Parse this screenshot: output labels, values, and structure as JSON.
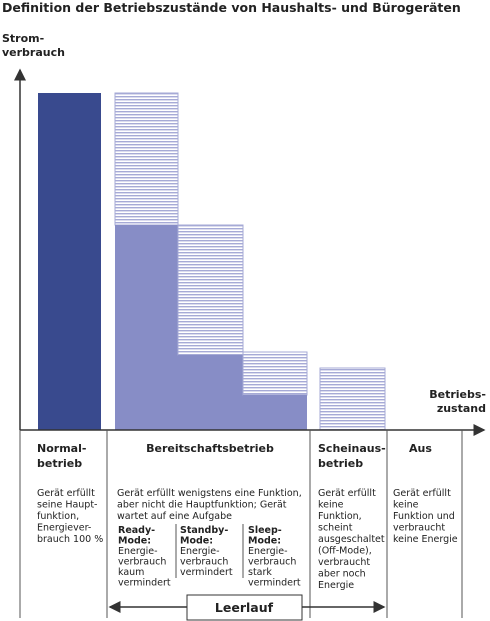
{
  "title": "Definition der Betriebszustände von Haushalts- und Bürogeräten",
  "y_axis_label": [
    "Strom-",
    "verbrauch"
  ],
  "x_axis_label": [
    "Betriebs-",
    "zustand"
  ],
  "columns": [
    {
      "heading": [
        "Normal-",
        "betrieb"
      ],
      "text": [
        "Gerät erfüllt",
        "seine Haupt-",
        "funktion,",
        "Energiever-",
        "brauch 100 %"
      ]
    },
    {
      "heading": [
        "Bereitschaftsbetrieb"
      ],
      "text": [
        "Gerät erfüllt wenigstens eine Funktion,",
        "aber nicht die Hauptfunktion; Gerät",
        "wartet auf eine Aufgabe"
      ],
      "modes": [
        {
          "name": [
            "Ready-",
            "Mode:"
          ],
          "text": [
            "Energie-",
            "verbrauch",
            "kaum",
            "vermindert"
          ]
        },
        {
          "name": [
            "Standby-",
            "Mode:"
          ],
          "text": [
            "Energie-",
            "verbrauch",
            "vermindert"
          ]
        },
        {
          "name": [
            "Sleep-",
            "Mode:"
          ],
          "text": [
            "Energie-",
            "verbrauch",
            "stark",
            "vermindert"
          ]
        }
      ]
    },
    {
      "heading": [
        "Scheinaus-",
        "betrieb"
      ],
      "text": [
        "Gerät erfüllt",
        "keine",
        "Funktion,",
        "scheint",
        "ausgeschaltet",
        "(Off-Mode),",
        "verbraucht",
        "aber noch",
        "Energie"
      ]
    },
    {
      "heading": [
        "Aus"
      ],
      "text": [
        "Gerät erfüllt",
        "keine",
        "Funktion und",
        "verbraucht",
        "keine Energie"
      ]
    }
  ],
  "idle_label": "Leerlauf"
}
